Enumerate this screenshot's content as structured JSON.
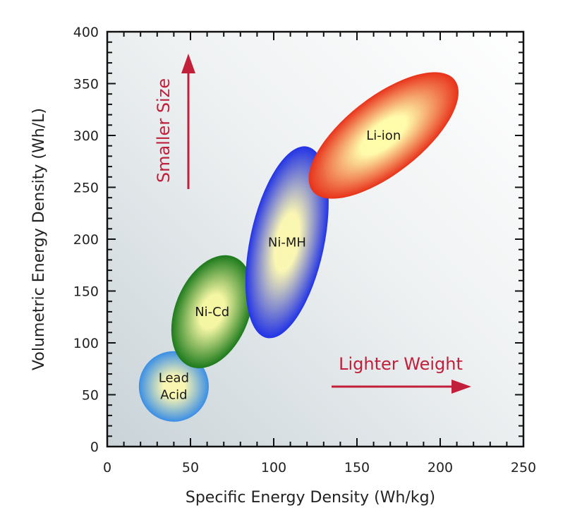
{
  "chart_data": {
    "type": "scatter",
    "title": "",
    "xlabel": "Specific Energy Density (Wh/kg)",
    "ylabel": "Volumetric Energy Density (Wh/L)",
    "xlim": [
      0,
      250
    ],
    "ylim": [
      0,
      400
    ],
    "xticks": [
      0,
      50,
      100,
      150,
      200,
      250
    ],
    "yticks": [
      0,
      50,
      100,
      150,
      200,
      250,
      300,
      350,
      400
    ],
    "minor_tick_step": 10,
    "grid": false,
    "regions": [
      {
        "name": "Lead Acid",
        "label_lines": [
          "Lead",
          "Acid"
        ],
        "center": [
          40,
          58
        ],
        "x_range": [
          19,
          61
        ],
        "y_range": [
          24,
          92
        ],
        "edge_color": "#3a8ee6",
        "center_color": "#fbf7b0"
      },
      {
        "name": "Ni-Cd",
        "label_lines": [
          "Ni-Cd"
        ],
        "center": [
          63,
          130
        ],
        "x_range": [
          38,
          87
        ],
        "y_range": [
          75,
          184
        ],
        "edge_color": "#1c7a1c",
        "center_color": "#f6f7a0"
      },
      {
        "name": "Ni-MH",
        "label_lines": [
          "Ni-MH"
        ],
        "center": [
          108,
          197
        ],
        "x_range": [
          82,
          132
        ],
        "y_range": [
          105,
          290
        ],
        "edge_color": "#2233e6",
        "center_color": "#fbf7b0"
      },
      {
        "name": "Li-ion",
        "label_lines": [
          "Li-ion"
        ],
        "center": [
          166,
          300
        ],
        "x_range": [
          122,
          212
        ],
        "y_range": [
          235,
          357
        ],
        "edge_color": "#e8321a",
        "center_color": "#fffca8"
      }
    ],
    "annotations": [
      {
        "text": "Smaller Size",
        "direction": "up",
        "color": "#c21f3a"
      },
      {
        "text": "Lighter Weight",
        "direction": "right",
        "color": "#c21f3a"
      }
    ]
  }
}
